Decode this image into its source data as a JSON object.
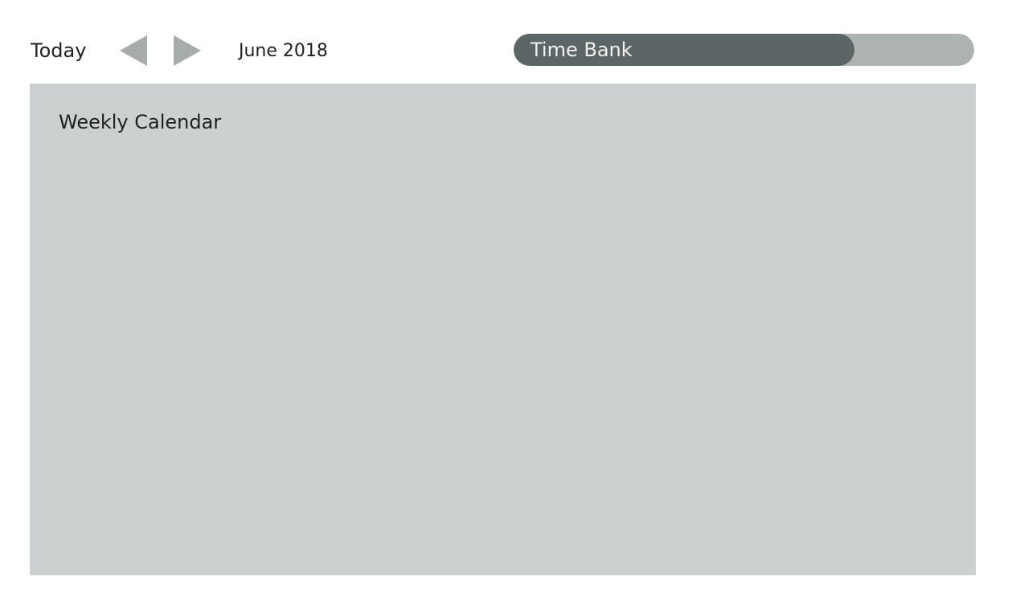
{
  "toolbar": {
    "today_label": "Today",
    "prev_icon": "triangle-left-icon",
    "next_icon": "triangle-right-icon",
    "month_label": "June 2018",
    "arrow_color": "#a5aca9"
  },
  "time_bank": {
    "label": "Time Bank",
    "fill_fraction": 0.74,
    "fill_color": "#5d6666",
    "track_color": "#adb3b1"
  },
  "calendar": {
    "title": "Weekly Calendar",
    "background_color": "#cbd1d1"
  }
}
